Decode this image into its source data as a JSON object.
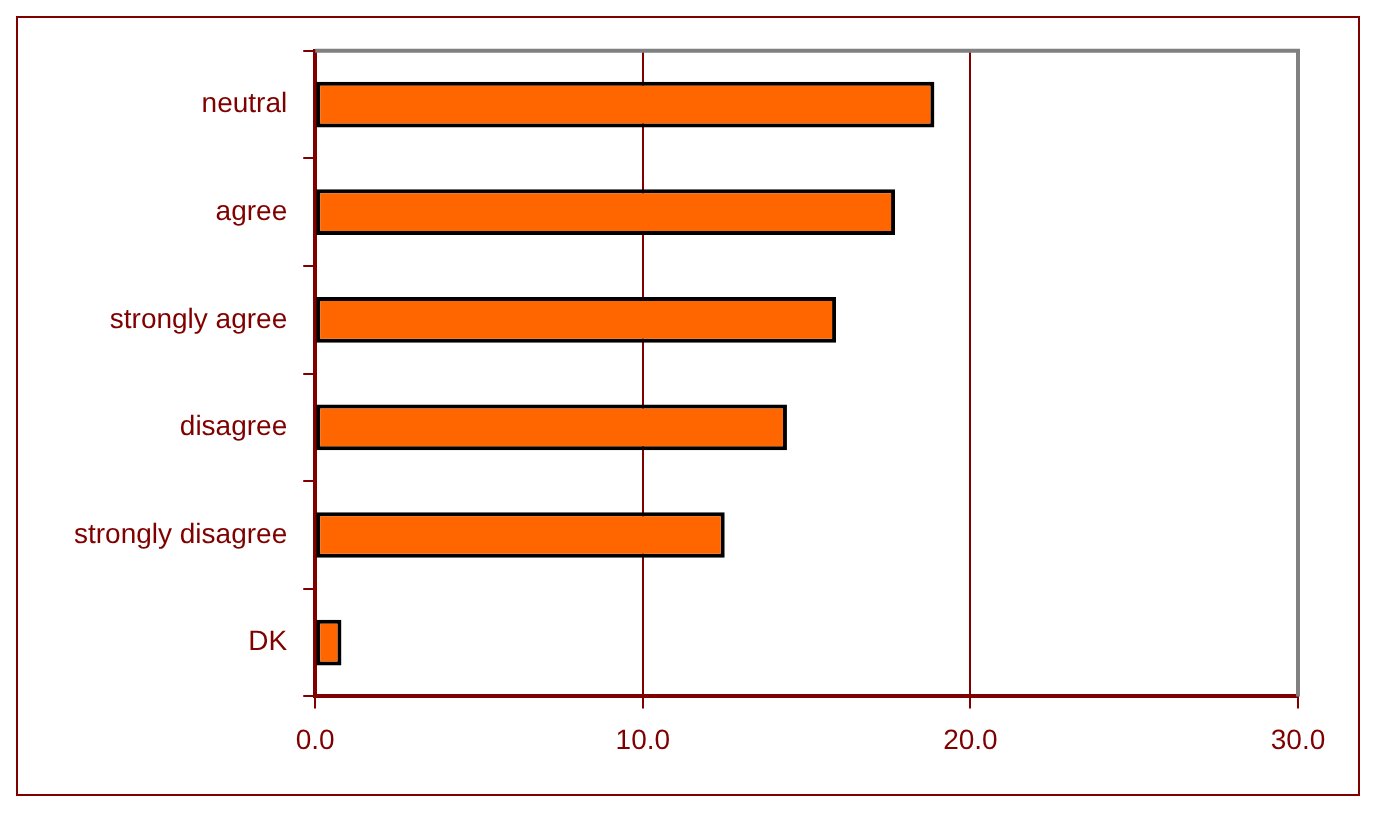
{
  "chart_data": {
    "type": "bar",
    "orientation": "horizontal",
    "categories": [
      "neutral",
      "agree",
      "strongly agree",
      "disagree",
      "strongly disagree",
      "DK"
    ],
    "values": [
      18.9,
      17.7,
      15.9,
      14.4,
      12.5,
      0.8
    ],
    "color": "#ff6600",
    "xlim": [
      0,
      30
    ],
    "xticks": [
      {
        "value": 0,
        "label": "0.0"
      },
      {
        "value": 10,
        "label": "10.0"
      },
      {
        "value": 20,
        "label": "20.0"
      },
      {
        "value": 30,
        "label": "30.0"
      }
    ],
    "grid": "x",
    "legend": false
  }
}
